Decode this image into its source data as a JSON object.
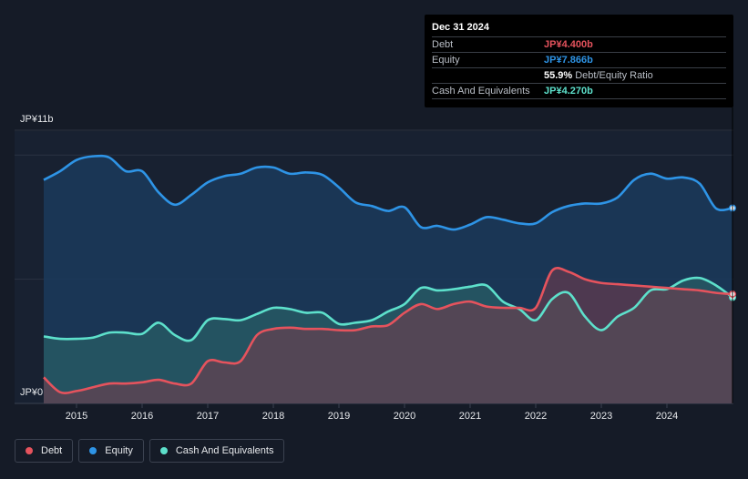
{
  "tooltip": {
    "date": "Dec 31 2024",
    "rows": [
      {
        "label": "Debt",
        "value": "JP¥4.400b",
        "color": "#e5535d"
      },
      {
        "label": "Equity",
        "value": "JP¥7.866b",
        "color": "#2e94e6"
      },
      {
        "label": "",
        "value": "55.9%",
        "extra": "Debt/Equity Ratio",
        "color": "#ffffff"
      },
      {
        "label": "Cash And Equivalents",
        "value": "JP¥4.270b",
        "color": "#5de0cb"
      }
    ]
  },
  "y_top_label": "JP¥11b",
  "y_bottom_label": "JP¥0",
  "legend": [
    {
      "label": "Debt",
      "color": "#e5535d"
    },
    {
      "label": "Equity",
      "color": "#2e94e6"
    },
    {
      "label": "Cash And Equivalents",
      "color": "#5de0cb"
    }
  ],
  "chart_data": {
    "type": "area",
    "ylim": [
      0,
      11
    ],
    "xlim": [
      2014.5,
      2025.0
    ],
    "x_ticks": [
      "2015",
      "2016",
      "2017",
      "2018",
      "2019",
      "2020",
      "2021",
      "2022",
      "2023",
      "2024"
    ],
    "x_tick_values": [
      2015,
      2016,
      2017,
      2018,
      2019,
      2020,
      2021,
      2022,
      2023,
      2024
    ],
    "series": [
      {
        "name": "Equity",
        "color": "#2e94e6",
        "points": [
          [
            2014.5,
            9.0
          ],
          [
            2014.75,
            9.35
          ],
          [
            2015.0,
            9.8
          ],
          [
            2015.25,
            9.95
          ],
          [
            2015.5,
            9.9
          ],
          [
            2015.75,
            9.35
          ],
          [
            2016.0,
            9.35
          ],
          [
            2016.25,
            8.5
          ],
          [
            2016.5,
            8.0
          ],
          [
            2016.75,
            8.4
          ],
          [
            2017.0,
            8.9
          ],
          [
            2017.25,
            9.15
          ],
          [
            2017.5,
            9.25
          ],
          [
            2017.75,
            9.5
          ],
          [
            2018.0,
            9.5
          ],
          [
            2018.25,
            9.25
          ],
          [
            2018.5,
            9.3
          ],
          [
            2018.75,
            9.2
          ],
          [
            2019.0,
            8.7
          ],
          [
            2019.25,
            8.1
          ],
          [
            2019.5,
            7.95
          ],
          [
            2019.75,
            7.75
          ],
          [
            2020.0,
            7.9
          ],
          [
            2020.25,
            7.1
          ],
          [
            2020.5,
            7.15
          ],
          [
            2020.75,
            7.0
          ],
          [
            2021.0,
            7.2
          ],
          [
            2021.25,
            7.5
          ],
          [
            2021.5,
            7.4
          ],
          [
            2021.75,
            7.25
          ],
          [
            2022.0,
            7.25
          ],
          [
            2022.25,
            7.7
          ],
          [
            2022.5,
            7.95
          ],
          [
            2022.75,
            8.05
          ],
          [
            2023.0,
            8.05
          ],
          [
            2023.25,
            8.3
          ],
          [
            2023.5,
            9.0
          ],
          [
            2023.75,
            9.25
          ],
          [
            2024.0,
            9.05
          ],
          [
            2024.25,
            9.1
          ],
          [
            2024.5,
            8.85
          ],
          [
            2024.75,
            7.85
          ],
          [
            2025.0,
            7.866
          ]
        ]
      },
      {
        "name": "Cash And Equivalents",
        "color": "#5de0cb",
        "points": [
          [
            2014.5,
            2.7
          ],
          [
            2014.75,
            2.6
          ],
          [
            2015.0,
            2.6
          ],
          [
            2015.25,
            2.65
          ],
          [
            2015.5,
            2.85
          ],
          [
            2015.75,
            2.85
          ],
          [
            2016.0,
            2.8
          ],
          [
            2016.25,
            3.25
          ],
          [
            2016.5,
            2.75
          ],
          [
            2016.75,
            2.55
          ],
          [
            2017.0,
            3.35
          ],
          [
            2017.25,
            3.4
          ],
          [
            2017.5,
            3.35
          ],
          [
            2017.75,
            3.6
          ],
          [
            2018.0,
            3.85
          ],
          [
            2018.25,
            3.8
          ],
          [
            2018.5,
            3.65
          ],
          [
            2018.75,
            3.65
          ],
          [
            2019.0,
            3.2
          ],
          [
            2019.25,
            3.25
          ],
          [
            2019.5,
            3.35
          ],
          [
            2019.75,
            3.7
          ],
          [
            2020.0,
            4.0
          ],
          [
            2020.25,
            4.65
          ],
          [
            2020.5,
            4.55
          ],
          [
            2020.75,
            4.6
          ],
          [
            2021.0,
            4.7
          ],
          [
            2021.25,
            4.75
          ],
          [
            2021.5,
            4.1
          ],
          [
            2021.75,
            3.8
          ],
          [
            2022.0,
            3.35
          ],
          [
            2022.25,
            4.2
          ],
          [
            2022.5,
            4.45
          ],
          [
            2022.75,
            3.5
          ],
          [
            2023.0,
            2.95
          ],
          [
            2023.25,
            3.5
          ],
          [
            2023.5,
            3.85
          ],
          [
            2023.75,
            4.55
          ],
          [
            2024.0,
            4.6
          ],
          [
            2024.25,
            4.95
          ],
          [
            2024.5,
            5.05
          ],
          [
            2024.75,
            4.75
          ],
          [
            2025.0,
            4.27
          ]
        ]
      },
      {
        "name": "Debt",
        "color": "#e5535d",
        "points": [
          [
            2014.5,
            1.05
          ],
          [
            2014.75,
            0.45
          ],
          [
            2015.0,
            0.5
          ],
          [
            2015.25,
            0.65
          ],
          [
            2015.5,
            0.8
          ],
          [
            2015.75,
            0.8
          ],
          [
            2016.0,
            0.85
          ],
          [
            2016.25,
            0.95
          ],
          [
            2016.5,
            0.8
          ],
          [
            2016.75,
            0.8
          ],
          [
            2017.0,
            1.7
          ],
          [
            2017.25,
            1.65
          ],
          [
            2017.5,
            1.7
          ],
          [
            2017.75,
            2.75
          ],
          [
            2018.0,
            3.0
          ],
          [
            2018.25,
            3.05
          ],
          [
            2018.5,
            3.0
          ],
          [
            2018.75,
            3.0
          ],
          [
            2019.0,
            2.95
          ],
          [
            2019.25,
            2.95
          ],
          [
            2019.5,
            3.1
          ],
          [
            2019.75,
            3.15
          ],
          [
            2020.0,
            3.65
          ],
          [
            2020.25,
            4.0
          ],
          [
            2020.5,
            3.8
          ],
          [
            2020.75,
            4.0
          ],
          [
            2021.0,
            4.1
          ],
          [
            2021.25,
            3.9
          ],
          [
            2021.5,
            3.85
          ],
          [
            2021.75,
            3.85
          ],
          [
            2022.0,
            3.85
          ],
          [
            2022.25,
            5.35
          ],
          [
            2022.5,
            5.3
          ],
          [
            2022.75,
            5.0
          ],
          [
            2023.0,
            4.85
          ],
          [
            2023.25,
            4.8
          ],
          [
            2023.5,
            4.75
          ],
          [
            2023.75,
            4.7
          ],
          [
            2024.0,
            4.65
          ],
          [
            2024.25,
            4.6
          ],
          [
            2024.5,
            4.55
          ],
          [
            2024.75,
            4.45
          ],
          [
            2025.0,
            4.4
          ]
        ]
      }
    ]
  }
}
